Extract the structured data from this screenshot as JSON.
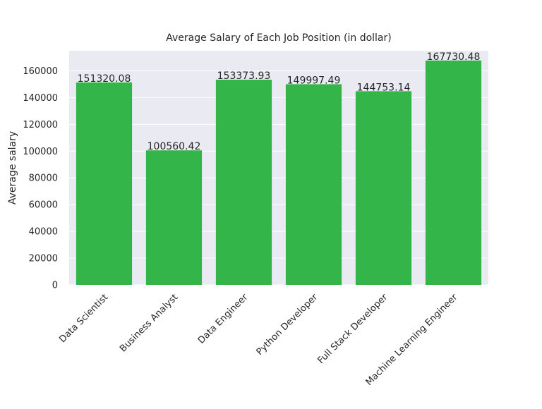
{
  "chart_data": {
    "type": "bar",
    "title": "Average Salary of Each Job Position (in dollar)",
    "xlabel": "",
    "ylabel": "Average salary",
    "categories": [
      "Data Scientist",
      "Business Analyst",
      "Data Engineer",
      "Python Developer",
      "Full Stack Developer",
      "Machine Learning Engineer"
    ],
    "values": [
      151320.08,
      100560.42,
      153373.93,
      149997.49,
      144753.14,
      167730.48
    ],
    "value_labels": [
      "151320.08",
      "100560.42",
      "153373.93",
      "149997.49",
      "144753.14",
      "167730.48"
    ],
    "ylim": [
      0,
      175000
    ],
    "yticks": [
      0,
      20000,
      40000,
      60000,
      80000,
      100000,
      120000,
      140000,
      160000
    ],
    "ytick_labels": [
      "0",
      "20000",
      "40000",
      "60000",
      "80000",
      "100000",
      "120000",
      "140000",
      "160000"
    ],
    "grid": true,
    "colors": {
      "bar": "#33b54a",
      "plot_background": "#eaeaf2",
      "grid": "#ffffff",
      "text": "#262626"
    }
  }
}
